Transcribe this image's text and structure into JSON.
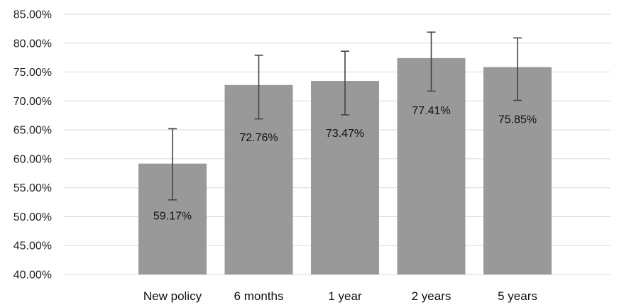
{
  "chart_data": {
    "type": "bar",
    "categories": [
      "New policy",
      "6 months",
      "1 year",
      "2 years",
      "5 years"
    ],
    "values": [
      59.17,
      72.76,
      73.47,
      77.41,
      75.85
    ],
    "data_labels": [
      "59.17%",
      "72.76%",
      "73.47%",
      "77.41%",
      "75.85%"
    ],
    "error_bars": [
      {
        "low": 52.9,
        "high": 65.2
      },
      {
        "low": 66.9,
        "high": 77.9
      },
      {
        "low": 67.6,
        "high": 78.6
      },
      {
        "low": 71.7,
        "high": 81.9
      },
      {
        "low": 70.1,
        "high": 80.9
      }
    ],
    "ylim": [
      40,
      85
    ],
    "yticks": [
      40,
      45,
      50,
      55,
      60,
      65,
      70,
      75,
      80,
      85
    ],
    "ytick_labels": [
      "40.00%",
      "45.00%",
      "50.00%",
      "55.00%",
      "60.00%",
      "65.00%",
      "70.00%",
      "75.00%",
      "80.00%",
      "85.00%"
    ],
    "title": "",
    "xlabel": "",
    "ylabel": "",
    "grid": true,
    "legend": "none",
    "colors": {
      "bar": "#999999",
      "grid": "#d9d9d9",
      "error_bar": "#444444",
      "text": "#111111"
    }
  }
}
